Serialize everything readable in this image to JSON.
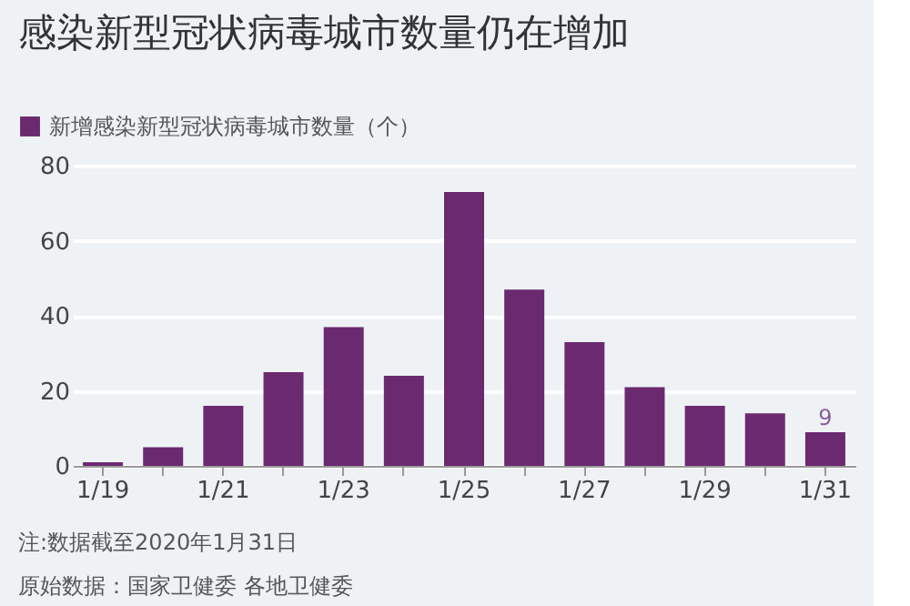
{
  "chart_data": {
    "type": "bar",
    "title": "感染新型冠状病毒城市数量仍在增加",
    "categories": [
      "1/19",
      null,
      "1/21",
      null,
      "1/23",
      null,
      "1/25",
      null,
      "1/27",
      null,
      "1/29",
      null,
      "1/31"
    ],
    "series": [
      {
        "name": "新增感染新型冠状病毒城市数量（个）",
        "color": "#6b2a70",
        "values": [
          1,
          5,
          16,
          25,
          37,
          24,
          73,
          47,
          33,
          21,
          16,
          14,
          9
        ],
        "value_labels": [
          null,
          null,
          null,
          null,
          null,
          null,
          null,
          null,
          null,
          null,
          null,
          null,
          "9"
        ]
      }
    ],
    "ylim": [
      0,
      80
    ],
    "yticks": [
      0,
      20,
      40,
      60,
      80
    ],
    "grid": "y",
    "legend": "top left",
    "annotations": [
      "注:数据截至2020年1月31日",
      "原始数据：国家卫健委 各地卫健委"
    ]
  }
}
